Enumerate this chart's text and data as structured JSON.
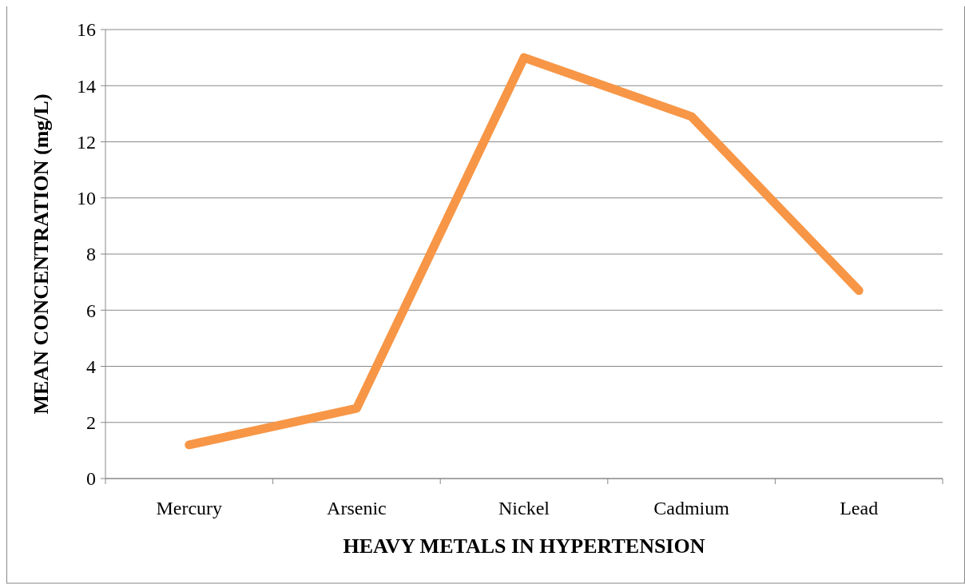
{
  "chart_data": {
    "type": "line",
    "xlabel": "HEAVY METALS IN HYPERTENSION",
    "ylabel": "MEAN CONCENTRATION (mg/L)",
    "categories": [
      "Mercury",
      "Arsenic",
      "Nickel",
      "Cadmium",
      "Lead"
    ],
    "series": [
      {
        "color": "#f79646",
        "values": [
          1.2,
          2.5,
          15.0,
          12.9,
          6.7
        ]
      }
    ],
    "ylim": [
      0,
      16
    ],
    "yticks": [
      0,
      2,
      4,
      6,
      8,
      10,
      12,
      14,
      16
    ],
    "grid": "y",
    "marker": "none",
    "line_style": "solid"
  }
}
